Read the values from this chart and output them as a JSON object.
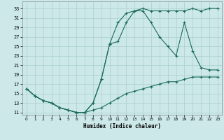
{
  "xlabel": "Humidex (Indice chaleur)",
  "bg_color": "#cce8e8",
  "grid_color": "#aacfcf",
  "line_color": "#1a6b5a",
  "xlim": [
    -0.5,
    23.5
  ],
  "ylim": [
    10.5,
    34.5
  ],
  "xtick_vals": [
    0,
    1,
    2,
    3,
    4,
    5,
    6,
    7,
    8,
    9,
    10,
    11,
    12,
    13,
    14,
    15,
    16,
    17,
    18,
    19,
    20,
    21,
    22,
    23
  ],
  "ytick_vals": [
    11,
    13,
    15,
    17,
    19,
    21,
    23,
    25,
    27,
    29,
    31,
    33
  ],
  "line1_x": [
    0,
    1,
    2,
    3,
    4,
    5,
    6,
    7,
    8,
    9,
    10,
    11,
    12,
    13,
    14,
    15,
    16,
    17,
    18,
    19,
    20,
    21,
    22,
    23
  ],
  "line1_y": [
    16,
    14.5,
    13.5,
    13,
    12,
    11.5,
    11,
    11,
    13,
    18,
    25.5,
    30,
    32,
    32.5,
    33,
    32.5,
    32.5,
    32.5,
    32.5,
    32.5,
    33,
    32.5,
    33,
    33
  ],
  "line2_x": [
    0,
    1,
    2,
    3,
    4,
    5,
    6,
    7,
    8,
    9,
    10,
    11,
    12,
    13,
    14,
    15,
    16,
    17,
    18,
    19,
    20,
    21,
    22,
    23
  ],
  "line2_y": [
    16,
    14.5,
    13.5,
    13,
    12,
    11.5,
    11,
    11,
    13,
    18,
    25.5,
    26,
    30,
    32.5,
    32.5,
    30,
    27,
    25,
    23,
    30,
    24,
    20.5,
    20,
    20
  ],
  "line3_x": [
    0,
    1,
    2,
    3,
    4,
    5,
    6,
    7,
    8,
    9,
    10,
    11,
    12,
    13,
    14,
    15,
    16,
    17,
    18,
    19,
    20,
    21,
    22,
    23
  ],
  "line3_y": [
    16,
    14.5,
    13.5,
    13,
    12,
    11.5,
    11,
    11,
    11.5,
    12,
    13,
    14,
    15,
    15.5,
    16,
    16.5,
    17,
    17.5,
    17.5,
    18,
    18.5,
    18.5,
    18.5,
    18.5
  ]
}
